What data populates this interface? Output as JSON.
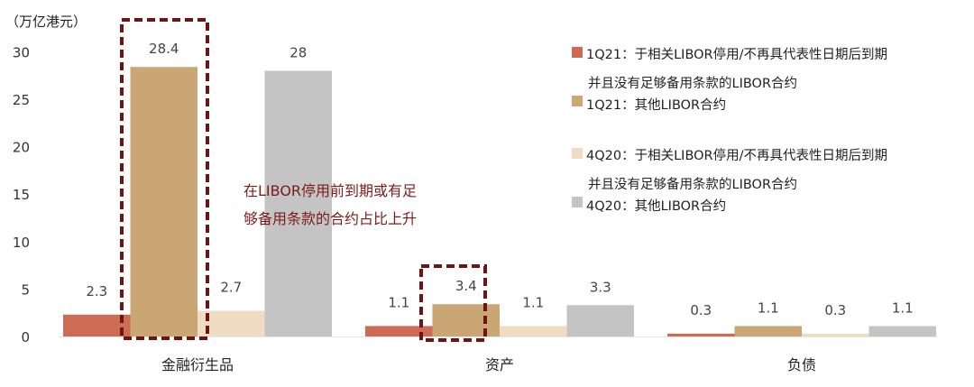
{
  "chart_data": {
    "type": "bar",
    "ylabel": "（万亿港元）",
    "ylim": [
      0,
      30
    ],
    "yticks": [
      0,
      5,
      10,
      15,
      20,
      25,
      30
    ],
    "categories": [
      "金融衍生品",
      "资产",
      "负债"
    ],
    "series": [
      {
        "name": "1Q21：于相关LIBOR停用/不再具代表性日期后到期并且没有足够备用条款的LIBOR合约",
        "legend_lines": [
          "1Q21：于相关LIBOR停用/不再具代表性日期后到期",
          "并且没有足够备用条款的LIBOR合约"
        ],
        "color": "#cd6b55",
        "values": [
          2.3,
          1.1,
          0.3
        ]
      },
      {
        "name": "1Q21：其他LIBOR合约",
        "legend_lines": [
          "1Q21：其他LIBOR合约"
        ],
        "color": "#c9a673",
        "values": [
          28.4,
          3.4,
          1.1
        ]
      },
      {
        "name": "4Q20：于相关LIBOR停用/不再具代表性日期后到期并且没有足够备用条款的LIBOR合约",
        "legend_lines": [
          "4Q20：于相关LIBOR停用/不再具代表性日期后到期",
          "并且没有足够备用条款的LIBOR合约"
        ],
        "color": "#efdcc2",
        "values": [
          2.7,
          1.1,
          0.3
        ]
      },
      {
        "name": "4Q20：其他LIBOR合约",
        "legend_lines": [
          "4Q20：其他LIBOR合约"
        ],
        "color": "#c4c4c4",
        "values": [
          28,
          3.3,
          1.1
        ]
      }
    ],
    "annotation": [
      "在LIBOR停用前到期或有足",
      "够备用条款的合约占比上升"
    ],
    "highlight_color": "#6e1414",
    "highlights": [
      {
        "category": 0,
        "series": 1
      },
      {
        "category": 1,
        "series": 1
      }
    ],
    "legend_position": "right",
    "grid": false
  }
}
